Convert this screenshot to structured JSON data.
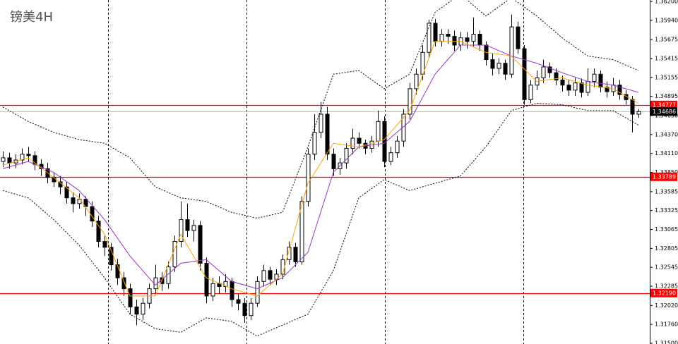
{
  "chart_data": {
    "type": "candlestick",
    "title": "镑美4H",
    "ylim": [
      1.3149,
      1.3622
    ],
    "yticks": [
      {
        "value": 1.362,
        "label": "1.36200"
      },
      {
        "value": 1.3594,
        "label": "1.35940"
      },
      1.35675,
      1.35415,
      1.35155,
      1.34895,
      {
        "value": 1.3463,
        "label": "1.34630"
      },
      {
        "value": 1.3437,
        "label": "1.34370"
      },
      {
        "value": 1.3411,
        "label": "1.34110"
      },
      {
        "value": 1.3385,
        "label": "1.33850"
      },
      1.33585,
      1.33325,
      1.33065,
      1.32805,
      1.32545,
      1.32285,
      {
        "value": 1.3202,
        "label": "1.32020"
      },
      {
        "value": 1.3176,
        "label": "1.31760"
      },
      {
        "value": 1.315,
        "label": "1.31500"
      }
    ],
    "ohlc": [
      [
        1.34,
        1.3414,
        1.3392,
        1.3405
      ],
      [
        1.3405,
        1.3412,
        1.339,
        1.3398
      ],
      [
        1.3398,
        1.341,
        1.3391,
        1.3402
      ],
      [
        1.3402,
        1.3418,
        1.3396,
        1.341
      ],
      [
        1.341,
        1.342,
        1.34,
        1.3408
      ],
      [
        1.3408,
        1.3414,
        1.3388,
        1.3396
      ],
      [
        1.3396,
        1.3403,
        1.338,
        1.339
      ],
      [
        1.339,
        1.3398,
        1.337,
        1.3378
      ],
      [
        1.3378,
        1.3385,
        1.3365,
        1.3372
      ],
      [
        1.3372,
        1.338,
        1.3355,
        1.3365
      ],
      [
        1.3365,
        1.3372,
        1.3342,
        1.335
      ],
      [
        1.335,
        1.3358,
        1.333,
        1.3342
      ],
      [
        1.3342,
        1.3356,
        1.3335,
        1.3348
      ],
      [
        1.3348,
        1.3352,
        1.3325,
        1.3338
      ],
      [
        1.3338,
        1.3345,
        1.331,
        1.3318
      ],
      [
        1.3318,
        1.3325,
        1.3282,
        1.329
      ],
      [
        1.329,
        1.3298,
        1.327,
        1.3282
      ],
      [
        1.3282,
        1.3288,
        1.325,
        1.3258
      ],
      [
        1.3258,
        1.3266,
        1.323,
        1.324
      ],
      [
        1.324,
        1.3248,
        1.3215,
        1.3225
      ],
      [
        1.3225,
        1.3232,
        1.319,
        1.32
      ],
      [
        1.32,
        1.321,
        1.3175,
        1.319
      ],
      [
        1.319,
        1.3212,
        1.3182,
        1.3205
      ],
      [
        1.3205,
        1.3232,
        1.3198,
        1.3225
      ],
      [
        1.3225,
        1.3258,
        1.3218,
        1.324
      ],
      [
        1.324,
        1.3248,
        1.3222,
        1.3232
      ],
      [
        1.3232,
        1.3262,
        1.3225,
        1.3255
      ],
      [
        1.3255,
        1.3298,
        1.3248,
        1.329
      ],
      [
        1.329,
        1.3345,
        1.3282,
        1.332
      ],
      [
        1.332,
        1.3342,
        1.3296,
        1.3305
      ],
      [
        1.3305,
        1.332,
        1.329,
        1.3312
      ],
      [
        1.3312,
        1.3318,
        1.325,
        1.326
      ],
      [
        1.326,
        1.3268,
        1.3205,
        1.3215
      ],
      [
        1.3215,
        1.324,
        1.3208,
        1.3232
      ],
      [
        1.3232,
        1.3242,
        1.3218,
        1.3228
      ],
      [
        1.3228,
        1.3245,
        1.322,
        1.3235
      ],
      [
        1.3235,
        1.324,
        1.32,
        1.321
      ],
      [
        1.321,
        1.3218,
        1.3195,
        1.3205
      ],
      [
        1.3205,
        1.3212,
        1.3178,
        1.3188
      ],
      [
        1.3188,
        1.3212,
        1.3182,
        1.3205
      ],
      [
        1.3205,
        1.3242,
        1.32,
        1.3235
      ],
      [
        1.3235,
        1.3258,
        1.3228,
        1.325
      ],
      [
        1.325,
        1.3255,
        1.323,
        1.3238
      ],
      [
        1.3238,
        1.3252,
        1.323,
        1.3245
      ],
      [
        1.3245,
        1.3272,
        1.3238,
        1.3265
      ],
      [
        1.3265,
        1.329,
        1.3258,
        1.3282
      ],
      [
        1.3282,
        1.3288,
        1.3255,
        1.3262
      ],
      [
        1.3262,
        1.3352,
        1.3258,
        1.3345
      ],
      [
        1.3345,
        1.3418,
        1.3338,
        1.341
      ],
      [
        1.341,
        1.3465,
        1.3402,
        1.344
      ],
      [
        1.344,
        1.3482,
        1.3432,
        1.3465
      ],
      [
        1.3465,
        1.3475,
        1.3402,
        1.341
      ],
      [
        1.341,
        1.3418,
        1.338,
        1.339
      ],
      [
        1.339,
        1.3405,
        1.3382,
        1.3398
      ],
      [
        1.3398,
        1.3425,
        1.339,
        1.3418
      ],
      [
        1.3418,
        1.3445,
        1.341,
        1.3432
      ],
      [
        1.3432,
        1.344,
        1.3418,
        1.3425
      ],
      [
        1.3425,
        1.343,
        1.341,
        1.3418
      ],
      [
        1.3418,
        1.3435,
        1.3412,
        1.3428
      ],
      [
        1.3428,
        1.347,
        1.342,
        1.3455
      ],
      [
        1.3455,
        1.3462,
        1.3392,
        1.34
      ],
      [
        1.34,
        1.342,
        1.3395,
        1.3412
      ],
      [
        1.3412,
        1.3435,
        1.3405,
        1.3428
      ],
      [
        1.3428,
        1.3472,
        1.342,
        1.3465
      ],
      [
        1.3465,
        1.3508,
        1.3458,
        1.35
      ],
      [
        1.35,
        1.3528,
        1.3492,
        1.352
      ],
      [
        1.352,
        1.356,
        1.3512,
        1.355
      ],
      [
        1.355,
        1.3595,
        1.3542,
        1.359
      ],
      [
        1.359,
        1.3596,
        1.3558,
        1.3565
      ],
      [
        1.3565,
        1.3582,
        1.3558,
        1.3575
      ],
      [
        1.3575,
        1.3582,
        1.3562,
        1.3572
      ],
      [
        1.3572,
        1.358,
        1.3552,
        1.356
      ],
      [
        1.356,
        1.3578,
        1.3552,
        1.357
      ],
      [
        1.357,
        1.3578,
        1.3555,
        1.3565
      ],
      [
        1.3565,
        1.3598,
        1.3558,
        1.3575
      ],
      [
        1.3575,
        1.358,
        1.3552,
        1.356
      ],
      [
        1.356,
        1.3565,
        1.3532,
        1.354
      ],
      [
        1.354,
        1.3548,
        1.3518,
        1.3528
      ],
      [
        1.3528,
        1.3542,
        1.352,
        1.3535
      ],
      [
        1.3535,
        1.354,
        1.3512,
        1.352
      ],
      [
        1.352,
        1.3602,
        1.3515,
        1.3585
      ],
      [
        1.3585,
        1.3592,
        1.3548,
        1.3555
      ],
      [
        1.3555,
        1.356,
        1.3478,
        1.3485
      ],
      [
        1.3485,
        1.3512,
        1.348,
        1.3505
      ],
      [
        1.3505,
        1.3525,
        1.3498,
        1.3515
      ],
      [
        1.3515,
        1.354,
        1.3508,
        1.353
      ],
      [
        1.353,
        1.3536,
        1.3515,
        1.3522
      ],
      [
        1.3522,
        1.3528,
        1.3505,
        1.3512
      ],
      [
        1.3512,
        1.3518,
        1.3496,
        1.3505
      ],
      [
        1.3505,
        1.3512,
        1.349,
        1.3498
      ],
      [
        1.3498,
        1.3515,
        1.349,
        1.3508
      ],
      [
        1.3508,
        1.3514,
        1.3488,
        1.3495
      ],
      [
        1.3495,
        1.3528,
        1.349,
        1.351
      ],
      [
        1.351,
        1.3528,
        1.3502,
        1.352
      ],
      [
        1.352,
        1.3525,
        1.3495,
        1.3502
      ],
      [
        1.3502,
        1.351,
        1.3488,
        1.3496
      ],
      [
        1.3496,
        1.3515,
        1.349,
        1.3505
      ],
      [
        1.3505,
        1.3512,
        1.3485,
        1.3492
      ],
      [
        1.3492,
        1.3498,
        1.3478,
        1.3485
      ],
      [
        1.3485,
        1.349,
        1.344,
        1.3465
      ],
      [
        1.3465,
        1.3472,
        1.346,
        1.34686
      ]
    ],
    "line_x": [
      0,
      4,
      8,
      12,
      16,
      20,
      24,
      28,
      32,
      36,
      40,
      44,
      48,
      52,
      56,
      60,
      64,
      68,
      72,
      76,
      80,
      84,
      88,
      92,
      96,
      100
    ],
    "lines": [
      {
        "color": "#000000",
        "dash": true,
        "values": [
          1.3475,
          1.3455,
          1.344,
          1.343,
          1.3425,
          1.3405,
          1.3365,
          1.335,
          1.3345,
          1.333,
          1.3322,
          1.333,
          1.342,
          1.352,
          1.3525,
          1.35,
          1.352,
          1.3605,
          1.363,
          1.36,
          1.3625,
          1.36,
          1.357,
          1.3545,
          1.354,
          1.3525
        ]
      },
      {
        "color": "#000000",
        "dash": true,
        "values": [
          1.336,
          1.335,
          1.332,
          1.3285,
          1.324,
          1.319,
          1.317,
          1.3165,
          1.3185,
          1.318,
          1.316,
          1.3175,
          1.319,
          1.325,
          1.335,
          1.3375,
          1.336,
          1.337,
          1.338,
          1.342,
          1.347,
          1.348,
          1.3478,
          1.347,
          1.347,
          1.345
        ]
      },
      {
        "color": "#9932cc",
        "dash": false,
        "values": [
          1.339,
          1.34,
          1.3385,
          1.336,
          1.332,
          1.327,
          1.323,
          1.326,
          1.3265,
          1.3235,
          1.3225,
          1.324,
          1.3275,
          1.3385,
          1.342,
          1.3425,
          1.3455,
          1.352,
          1.356,
          1.356,
          1.3545,
          1.3535,
          1.3522,
          1.351,
          1.3505,
          1.3495
        ]
      },
      {
        "color": "#ffa500",
        "dash": false,
        "values": [
          1.3395,
          1.3405,
          1.3378,
          1.335,
          1.33,
          1.3215,
          1.3215,
          1.33,
          1.324,
          1.3225,
          1.3215,
          1.3245,
          1.337,
          1.3425,
          1.342,
          1.343,
          1.347,
          1.3565,
          1.3565,
          1.355,
          1.3545,
          1.351,
          1.3515,
          1.3505,
          1.35,
          1.348
        ]
      }
    ],
    "hlines": [
      {
        "value": 1.34777,
        "color": "#ff0000"
      },
      {
        "value": 1.33789,
        "color": "#ff0000"
      },
      {
        "value": 1.3219,
        "label": "1.32190",
        "color": "#ff0000"
      }
    ],
    "price_line": {
      "value": 1.34686,
      "color": "#c0c0c0"
    }
  }
}
